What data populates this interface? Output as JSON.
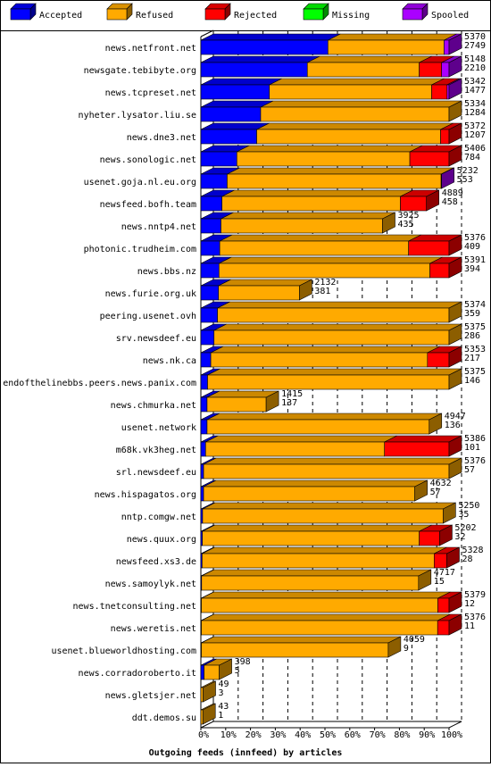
{
  "chart_data": {
    "type": "bar",
    "orientation": "horizontal",
    "stacked": true,
    "title": "Outgoing feeds (innfeed) by articles",
    "xlabel": "",
    "ylabel": "",
    "xlim": [
      0,
      100
    ],
    "x_ticks": [
      "0%",
      "10%",
      "20%",
      "30%",
      "40%",
      "50%",
      "60%",
      "70%",
      "80%",
      "90%",
      "100%"
    ],
    "grid": "vertical dashed",
    "legend_position": "top",
    "series": [
      {
        "name": "Accepted",
        "color": "#0000ff"
      },
      {
        "name": "Refused",
        "color": "#ffaa00"
      },
      {
        "name": "Rejected",
        "color": "#ff0000"
      },
      {
        "name": "Missing",
        "color": "#00ff00"
      },
      {
        "name": "Spooled",
        "color": "#aa00ff"
      }
    ],
    "rows": [
      {
        "name": "news.netfront.net",
        "offered": 5370,
        "accepted": 2749,
        "pct": [
          51.2,
          46.8,
          0,
          0,
          2.0
        ]
      },
      {
        "name": "newsgate.tebibyte.org",
        "offered": 5148,
        "accepted": 2210,
        "pct": [
          42.9,
          45.1,
          9.0,
          0,
          3.0
        ]
      },
      {
        "name": "news.tcpreset.net",
        "offered": 5342,
        "accepted": 1477,
        "pct": [
          27.6,
          65.4,
          6.2,
          0,
          0.8
        ]
      },
      {
        "name": "nyheter.lysator.liu.se",
        "offered": 5334,
        "accepted": 1284,
        "pct": [
          24.1,
          75.9,
          0,
          0,
          0
        ]
      },
      {
        "name": "news.dne3.net",
        "offered": 5372,
        "accepted": 1207,
        "pct": [
          22.5,
          74.1,
          3.4,
          0,
          0
        ]
      },
      {
        "name": "news.sonologic.net",
        "offered": 5406,
        "accepted": 784,
        "pct": [
          14.5,
          69.7,
          15.8,
          0,
          0
        ]
      },
      {
        "name": "usenet.goja.nl.eu.org",
        "offered": 5232,
        "accepted": 553,
        "pct": [
          10.6,
          86.2,
          0,
          0,
          0.2
        ]
      },
      {
        "name": "newsfeed.bofh.team",
        "offered": 4889,
        "accepted": 458,
        "pct": [
          8.5,
          71.9,
          10.5,
          0,
          0
        ]
      },
      {
        "name": "news.nntp4.net",
        "offered": 3925,
        "accepted": 435,
        "pct": [
          8.1,
          65.1,
          0,
          0,
          0
        ]
      },
      {
        "name": "photonic.trudheim.com",
        "offered": 5376,
        "accepted": 409,
        "pct": [
          7.6,
          76.1,
          16.3,
          0,
          0
        ]
      },
      {
        "name": "news.bbs.nz",
        "offered": 5391,
        "accepted": 394,
        "pct": [
          7.3,
          85.0,
          7.7,
          0,
          0
        ]
      },
      {
        "name": "news.furie.org.uk",
        "offered": 2132,
        "accepted": 381,
        "pct": [
          7.1,
          32.6,
          0,
          0,
          0
        ]
      },
      {
        "name": "peering.usenet.ovh",
        "offered": 5374,
        "accepted": 359,
        "pct": [
          6.7,
          93.3,
          0,
          0,
          0
        ]
      },
      {
        "name": "srv.newsdeef.eu",
        "offered": 5375,
        "accepted": 286,
        "pct": [
          5.3,
          94.7,
          0,
          0,
          0
        ]
      },
      {
        "name": "news.nk.ca",
        "offered": 5353,
        "accepted": 217,
        "pct": [
          4.0,
          87.3,
          8.7,
          0,
          0
        ]
      },
      {
        "name": "endofthelinebbs.peers.news.panix.com",
        "offered": 5375,
        "accepted": 146,
        "pct": [
          2.7,
          97.3,
          0,
          0,
          0
        ]
      },
      {
        "name": "news.chmurka.net",
        "offered": 1415,
        "accepted": 137,
        "pct": [
          2.5,
          23.8,
          0,
          0,
          0
        ]
      },
      {
        "name": "usenet.network",
        "offered": 4947,
        "accepted": 136,
        "pct": [
          2.5,
          89.5,
          0,
          0,
          0
        ]
      },
      {
        "name": "m68k.vk3heg.net",
        "offered": 5386,
        "accepted": 101,
        "pct": [
          1.9,
          72.1,
          26.0,
          0,
          0
        ]
      },
      {
        "name": "srl.newsdeef.eu",
        "offered": 5376,
        "accepted": 57,
        "pct": [
          1.1,
          98.9,
          0,
          0,
          0
        ]
      },
      {
        "name": "news.hispagatos.org",
        "offered": 4632,
        "accepted": 57,
        "pct": [
          1.1,
          85.1,
          0,
          0,
          0
        ]
      },
      {
        "name": "nntp.comgw.net",
        "offered": 5250,
        "accepted": 35,
        "pct": [
          0.7,
          96.9,
          0,
          0,
          0
        ]
      },
      {
        "name": "news.quux.org",
        "offered": 5202,
        "accepted": 32,
        "pct": [
          0.6,
          87.4,
          8.2,
          0,
          0
        ]
      },
      {
        "name": "newsfeed.xs3.de",
        "offered": 5328,
        "accepted": 28,
        "pct": [
          0.5,
          93.5,
          5.1,
          0,
          0
        ]
      },
      {
        "name": "news.samoylyk.net",
        "offered": 4717,
        "accepted": 15,
        "pct": [
          0.3,
          87.4,
          0,
          0,
          0
        ]
      },
      {
        "name": "news.tnetconsulting.net",
        "offered": 5379,
        "accepted": 12,
        "pct": [
          0.2,
          95.3,
          4.5,
          0,
          0
        ]
      },
      {
        "name": "news.weretis.net",
        "offered": 5376,
        "accepted": 11,
        "pct": [
          0.2,
          95.2,
          4.6,
          0,
          0
        ]
      },
      {
        "name": "usenet.blueworldhosting.com",
        "offered": 4059,
        "accepted": 9,
        "pct": [
          0.2,
          75.3,
          0,
          0,
          0
        ]
      },
      {
        "name": "news.corradoroberto.it",
        "offered": 398,
        "accepted": 5,
        "pct": [
          1.3,
          6.1,
          0,
          0,
          0
        ]
      },
      {
        "name": "news.gletsjer.net",
        "offered": 49,
        "accepted": 3,
        "pct": [
          0,
          0.9,
          0,
          0,
          0
        ]
      },
      {
        "name": "ddt.demos.su",
        "offered": 43,
        "accepted": 1,
        "pct": [
          0,
          0.8,
          0,
          0,
          0
        ]
      }
    ]
  }
}
